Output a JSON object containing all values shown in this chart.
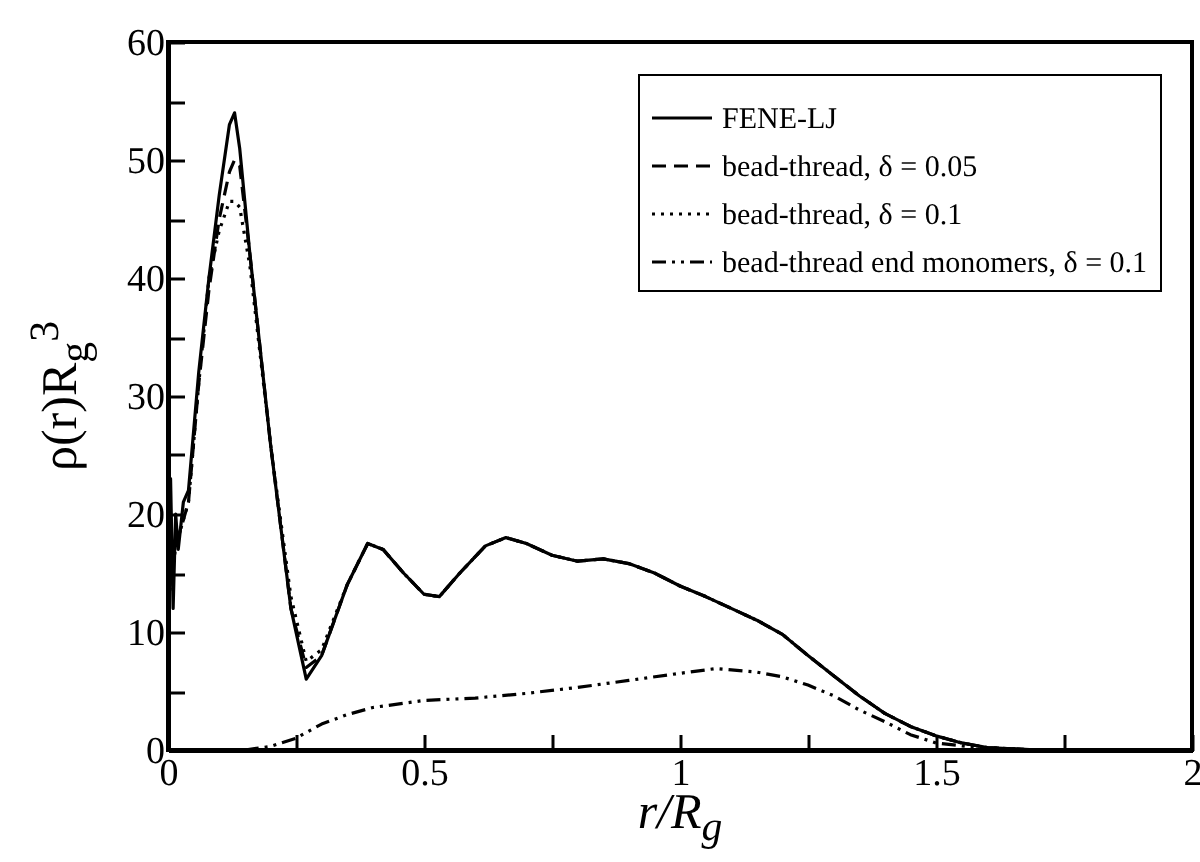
{
  "chart_data": {
    "type": "line",
    "xlabel": "r/R$_{g}$",
    "ylabel": "ρ(r)R$_{g}$$^{3}$",
    "xlim": [
      0,
      2
    ],
    "ylim": [
      0,
      60
    ],
    "xticks": [
      0,
      {
        "value": 0.25,
        "label": null
      },
      0.5,
      {
        "value": 0.75,
        "label": null
      },
      1,
      {
        "value": 1.25,
        "label": null
      },
      1.5,
      {
        "value": 1.75,
        "label": null
      },
      2
    ],
    "yticks": [
      0,
      {
        "value": 5,
        "label": null
      },
      10,
      {
        "value": 15,
        "label": null
      },
      20,
      {
        "value": 25,
        "label": null
      },
      30,
      {
        "value": 35,
        "label": null
      },
      40,
      {
        "value": 45,
        "label": null
      },
      50,
      {
        "value": 55,
        "label": null
      },
      60
    ],
    "legend": "top right",
    "series": [
      {
        "name": "FENE-LJ",
        "color": "#000000",
        "line_style": "solid",
        "x": [
          0,
          0.005,
          0.01,
          0.015,
          0.02,
          0.03,
          0.04,
          0.06,
          0.08,
          0.1,
          0.12,
          0.13,
          0.14,
          0.16,
          0.2,
          0.24,
          0.27,
          0.3,
          0.35,
          0.39,
          0.42,
          0.46,
          0.5,
          0.53,
          0.57,
          0.62,
          0.66,
          0.7,
          0.75,
          0.8,
          0.85,
          0.9,
          0.95,
          1,
          1.05,
          1.1,
          1.15,
          1.2,
          1.25,
          1.3,
          1.35,
          1.4,
          1.45,
          1.5,
          1.55,
          1.6,
          1.7,
          2
        ],
        "values": [
          9,
          23,
          12,
          20,
          17,
          21,
          22,
          32,
          40,
          47,
          53,
          54,
          51,
          42,
          26,
          12,
          6,
          8,
          14,
          17.5,
          17,
          15,
          13.2,
          13,
          15,
          17.3,
          18,
          17.5,
          16.5,
          16,
          16.2,
          15.8,
          15,
          13.9,
          13,
          12,
          11,
          9.8,
          8,
          6.3,
          4.6,
          3.1,
          2,
          1.2,
          0.6,
          0.2,
          0,
          0
        ]
      },
      {
        "name": "bead-thread, δ = 0.05",
        "color": "#000000",
        "line_style": "dashed",
        "x": [
          0,
          0.01,
          0.02,
          0.04,
          0.06,
          0.08,
          0.1,
          0.12,
          0.13,
          0.14,
          0.16,
          0.2,
          0.24,
          0.27,
          0.3,
          0.35,
          0.39,
          0.42,
          0.46,
          0.5,
          0.53,
          0.57,
          0.62,
          0.66,
          0.7,
          0.75,
          0.8,
          0.85,
          0.9,
          0.95,
          1,
          1.05,
          1.1,
          1.15,
          1.2,
          1.25,
          1.3,
          1.35,
          1.4,
          1.45,
          1.5,
          1.55,
          1.6,
          1.7,
          2
        ],
        "values": [
          12,
          17,
          18,
          21,
          31,
          39,
          45,
          49,
          50,
          49.5,
          42,
          26,
          12,
          7,
          8,
          14,
          17.5,
          17,
          15,
          13.2,
          13,
          15,
          17.3,
          18,
          17.5,
          16.5,
          16,
          16.2,
          15.8,
          15,
          13.9,
          13,
          12,
          11,
          9.8,
          8,
          6.3,
          4.6,
          3.1,
          2,
          1.2,
          0.6,
          0.2,
          0,
          0
        ]
      },
      {
        "name": "bead-thread, δ = 0.1",
        "color": "#000000",
        "line_style": "dotted",
        "x": [
          0,
          0.01,
          0.02,
          0.04,
          0.06,
          0.08,
          0.1,
          0.12,
          0.13,
          0.14,
          0.16,
          0.2,
          0.24,
          0.27,
          0.3,
          0.35,
          0.39,
          0.42,
          0.46,
          0.5,
          0.53,
          0.57,
          0.62,
          0.66,
          0.7,
          0.75,
          0.8,
          0.85,
          0.9,
          0.95,
          1,
          1.05,
          1.1,
          1.15,
          1.2,
          1.25,
          1.3,
          1.35,
          1.4,
          1.45,
          1.5,
          1.55,
          1.6,
          1.7,
          2
        ],
        "values": [
          12,
          16,
          18,
          21,
          31,
          40,
          44,
          46.5,
          46.5,
          46,
          41,
          26,
          13,
          7.5,
          8.5,
          14,
          17.5,
          17,
          15,
          13.2,
          13,
          15,
          17.3,
          18,
          17.5,
          16.5,
          16,
          16.2,
          15.8,
          15,
          13.9,
          13,
          12,
          11,
          9.8,
          8,
          6.3,
          4.6,
          3.1,
          2,
          1.2,
          0.6,
          0.2,
          0,
          0
        ]
      },
      {
        "name": "bead-thread end monomers, δ = 0.1",
        "color": "#000000",
        "line_style": "dashdot",
        "x": [
          0.15,
          0.2,
          0.25,
          0.3,
          0.35,
          0.4,
          0.5,
          0.6,
          0.7,
          0.8,
          0.9,
          1,
          1.07,
          1.15,
          1.2,
          1.25,
          1.3,
          1.35,
          1.4,
          1.45,
          1.5,
          1.6,
          1.7
        ],
        "values": [
          0,
          0.3,
          1,
          2.2,
          3,
          3.6,
          4.2,
          4.4,
          4.8,
          5.3,
          5.9,
          6.5,
          6.9,
          6.6,
          6.2,
          5.5,
          4.6,
          3.4,
          2.4,
          1.3,
          0.6,
          0.1,
          0
        ]
      }
    ]
  }
}
